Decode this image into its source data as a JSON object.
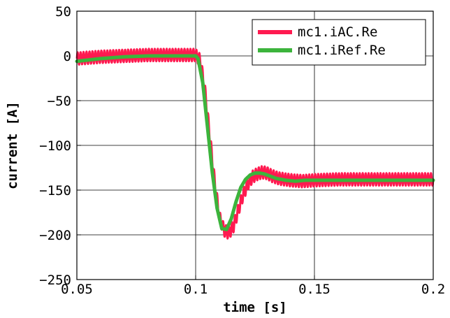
{
  "chart_data": {
    "type": "line",
    "xlabel": "time [s]",
    "ylabel": "current [A]",
    "xlim": [
      0.05,
      0.2
    ],
    "ylim": [
      -250,
      50
    ],
    "x_ticks": [
      0.05,
      0.1,
      0.15,
      0.2
    ],
    "x_tick_labels": [
      "0.05",
      "0.1",
      "0.15",
      "0.2"
    ],
    "y_ticks": [
      50,
      0,
      -50,
      -100,
      -150,
      -200,
      -250
    ],
    "y_tick_labels": [
      "50",
      "0",
      "−50",
      "−100",
      "−150",
      "−200",
      "−250"
    ],
    "grid": true,
    "legend_position": "top-right",
    "series": [
      {
        "name": "mc1.iAC.Re",
        "color": "#ff1a50",
        "ripple_amplitude": 7,
        "x": [
          0.05,
          0.06,
          0.07,
          0.08,
          0.09,
          0.1,
          0.102,
          0.104,
          0.106,
          0.108,
          0.11,
          0.112,
          0.114,
          0.116,
          0.118,
          0.12,
          0.122,
          0.124,
          0.126,
          0.128,
          0.13,
          0.132,
          0.135,
          0.14,
          0.145,
          0.15,
          0.16,
          0.17,
          0.18,
          0.19,
          0.2
        ],
        "values": [
          -3,
          -1,
          0,
          1,
          1,
          1,
          -5,
          -40,
          -90,
          -140,
          -180,
          -195,
          -198,
          -190,
          -172,
          -155,
          -143,
          -135,
          -132,
          -130,
          -131,
          -134,
          -137,
          -139,
          -140,
          -139,
          -138,
          -138,
          -138,
          -138,
          -138
        ]
      },
      {
        "name": "mc1.iRef.Re",
        "color": "#3cb43c",
        "x": [
          0.05,
          0.06,
          0.07,
          0.08,
          0.09,
          0.1,
          0.101,
          0.103,
          0.105,
          0.107,
          0.109,
          0.111,
          0.113,
          0.115,
          0.117,
          0.119,
          0.121,
          0.123,
          0.125,
          0.127,
          0.129,
          0.131,
          0.134,
          0.138,
          0.142,
          0.146,
          0.15,
          0.16,
          0.17,
          0.18,
          0.19,
          0.2
        ],
        "values": [
          -6,
          -3,
          -1,
          0,
          0,
          0,
          -3,
          -30,
          -80,
          -130,
          -170,
          -193,
          -194,
          -182,
          -163,
          -147,
          -138,
          -133,
          -131,
          -131,
          -132,
          -134,
          -137,
          -139,
          -140,
          -139,
          -139,
          -139,
          -139,
          -139,
          -139,
          -139
        ]
      }
    ]
  }
}
